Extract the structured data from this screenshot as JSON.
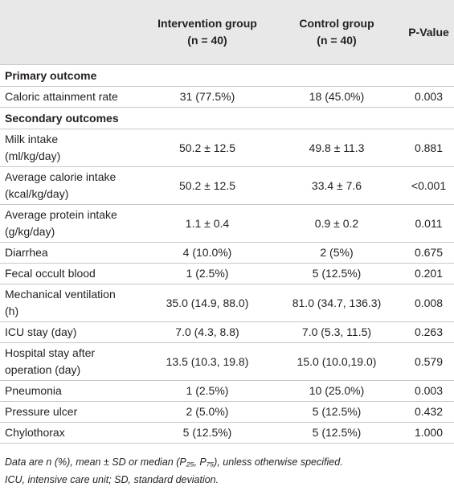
{
  "table": {
    "columns": [
      {
        "lines": []
      },
      {
        "lines": [
          "Intervention group",
          "(n = 40)"
        ]
      },
      {
        "lines": [
          "Control group",
          "(n = 40)"
        ]
      },
      {
        "lines": [
          "P-Value"
        ]
      }
    ],
    "rows": [
      {
        "section": "Primary outcome"
      },
      {
        "label": [
          "Caloric attainment rate"
        ],
        "cells": [
          "31 (77.5%)",
          "18 (45.0%)",
          "0.003"
        ]
      },
      {
        "section": "Secondary outcomes"
      },
      {
        "label": [
          "Milk intake",
          "(ml/kg/day)"
        ],
        "cells": [
          "50.2 ± 12.5",
          "49.8 ± 11.3",
          "0.881"
        ]
      },
      {
        "label": [
          "Average calorie intake",
          "(kcal/kg/day)"
        ],
        "cells": [
          "50.2 ± 12.5",
          "33.4 ± 7.6",
          "<0.001"
        ]
      },
      {
        "label": [
          "Average protein intake",
          "(g/kg/day)"
        ],
        "cells": [
          "1.1 ± 0.4",
          "0.9 ± 0.2",
          "0.011"
        ]
      },
      {
        "label": [
          "Diarrhea"
        ],
        "cells": [
          "4 (10.0%)",
          "2 (5%)",
          "0.675"
        ]
      },
      {
        "label": [
          "Fecal occult blood"
        ],
        "cells": [
          "1 (2.5%)",
          "5 (12.5%)",
          "0.201"
        ]
      },
      {
        "label": [
          "Mechanical ventilation",
          "(h)"
        ],
        "cells": [
          "35.0 (14.9, 88.0)",
          "81.0 (34.7, 136.3)",
          "0.008"
        ]
      },
      {
        "label": [
          "ICU stay (day)"
        ],
        "cells": [
          "7.0 (4.3, 8.8)",
          "7.0 (5.3, 11.5)",
          "0.263"
        ]
      },
      {
        "label": [
          "Hospital stay after",
          "operation (day)"
        ],
        "cells": [
          "13.5 (10.3, 19.8)",
          "15.0 (10.0,19.0)",
          "0.579"
        ]
      },
      {
        "label": [
          "Pneumonia"
        ],
        "cells": [
          "1 (2.5%)",
          "10 (25.0%)",
          "0.003"
        ]
      },
      {
        "label": [
          "Pressure ulcer"
        ],
        "cells": [
          "2 (5.0%)",
          "5 (12.5%)",
          "0.432"
        ]
      },
      {
        "label": [
          "Chylothorax"
        ],
        "cells": [
          "5 (12.5%)",
          "5 (12.5%)",
          "1.000"
        ]
      }
    ]
  },
  "footnote": [
    "Data are n (%), mean ± SD or median (P₂₅, P₇₅), unless otherwise specified.",
    "ICU, intensive care unit; SD, standard deviation."
  ]
}
